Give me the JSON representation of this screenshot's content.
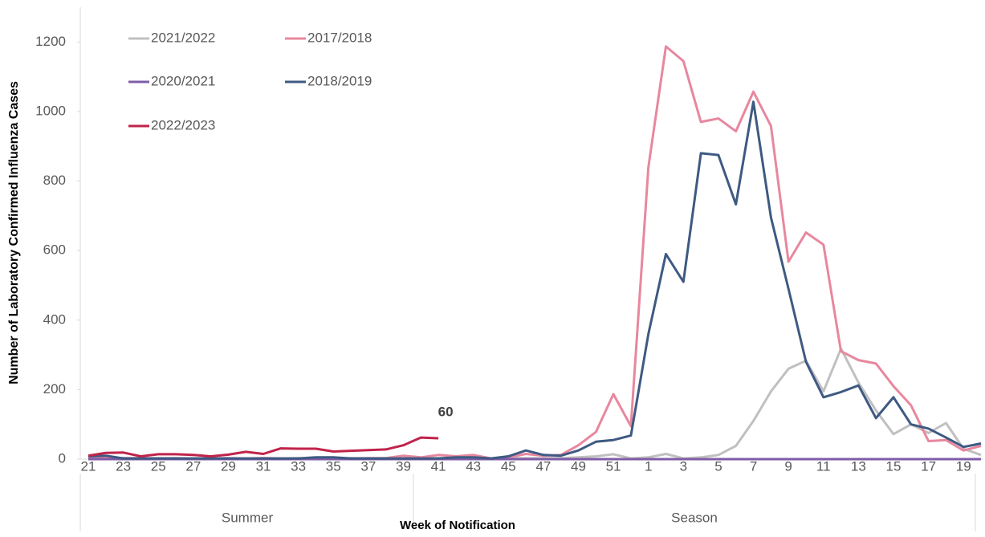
{
  "chart_data": {
    "type": "line",
    "y_label": "Number of Laboratory Confirmed Influenza Cases",
    "x_label": "Week of Notification",
    "x_groups": [
      "Summer",
      "Season"
    ],
    "categories": [
      21,
      null,
      23,
      null,
      25,
      null,
      27,
      null,
      29,
      null,
      31,
      null,
      33,
      null,
      35,
      null,
      37,
      null,
      39,
      null,
      41,
      null,
      43,
      null,
      45,
      null,
      47,
      null,
      49,
      null,
      51,
      null,
      1,
      null,
      3,
      null,
      5,
      null,
      7,
      null,
      9,
      null,
      11,
      null,
      13,
      null,
      15,
      null,
      17,
      null,
      19,
      null
    ],
    "ylim": [
      0,
      1300
    ],
    "yticks": [
      0,
      200,
      400,
      600,
      800,
      1000,
      1200
    ],
    "grid": false,
    "legend": "top-left",
    "series": [
      {
        "name": "2021/2022",
        "color": "#c0c0c0",
        "values": [
          5,
          4,
          3,
          2,
          3,
          2,
          2,
          3,
          2,
          2,
          3,
          2,
          3,
          2,
          2,
          3,
          2,
          2,
          3,
          2,
          3,
          2,
          3,
          2,
          3,
          3,
          3,
          3,
          5,
          8,
          14,
          2,
          5,
          15,
          2,
          5,
          12,
          38,
          110,
          195,
          260,
          283,
          195,
          318,
          220,
          140,
          72,
          100,
          75,
          104,
          30,
          12
        ]
      },
      {
        "name": "2017/2018",
        "color": "#e8879f",
        "values": [
          5,
          4,
          3,
          3,
          2,
          3,
          2,
          2,
          3,
          2,
          3,
          2,
          2,
          3,
          2,
          2,
          3,
          3,
          10,
          5,
          12,
          8,
          12,
          2,
          5,
          15,
          10,
          12,
          40,
          78,
          187,
          95,
          840,
          1187,
          1145,
          970,
          980,
          943,
          1057,
          958,
          568,
          652,
          617,
          310,
          285,
          275,
          210,
          155,
          52,
          55,
          25,
          38
        ]
      },
      {
        "name": "2020/2021",
        "color": "#7f5ca8",
        "values": [
          0,
          0,
          0,
          0,
          0,
          0,
          0,
          0,
          0,
          0,
          0,
          0,
          0,
          0,
          0,
          0,
          0,
          0,
          0,
          0,
          0,
          0,
          0,
          0,
          0,
          0,
          0,
          0,
          0,
          0,
          0,
          0,
          0,
          0,
          0,
          0,
          0,
          0,
          0,
          0,
          0,
          0,
          0,
          0,
          0,
          0,
          0,
          0,
          0,
          0,
          0,
          0
        ]
      },
      {
        "name": "2018/2019",
        "color": "#3e5a82",
        "values": [
          8,
          10,
          2,
          2,
          2,
          2,
          2,
          2,
          2,
          2,
          2,
          2,
          2,
          5,
          5,
          2,
          2,
          2,
          2,
          2,
          2,
          5,
          5,
          2,
          8,
          25,
          12,
          10,
          25,
          50,
          55,
          68,
          360,
          590,
          510,
          880,
          875,
          733,
          1028,
          695,
          490,
          280,
          178,
          193,
          212,
          118,
          178,
          100,
          88,
          62,
          35,
          45
        ]
      },
      {
        "name": "2022/2023",
        "color": "#c0234a",
        "values": [
          10,
          18,
          19,
          8,
          14,
          14,
          12,
          8,
          13,
          21,
          15,
          31,
          30,
          30,
          22,
          24,
          26,
          28,
          40,
          62,
          60,
          null,
          null,
          null,
          null,
          null,
          null,
          null,
          null,
          null,
          null,
          null,
          null,
          null,
          null,
          null,
          null,
          null,
          null,
          null,
          null,
          null,
          null,
          null,
          null,
          null,
          null,
          null,
          null,
          null,
          null,
          null
        ]
      }
    ]
  }
}
